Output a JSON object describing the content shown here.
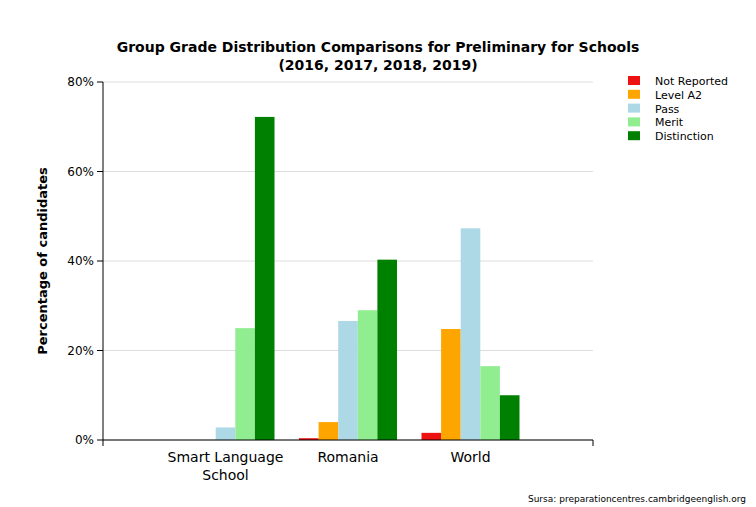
{
  "chart_data": {
    "type": "bar",
    "title": "Group Grade Distribution Comparisons for Preliminary for Schools",
    "subtitle": "(2016, 2017, 2018, 2019)",
    "y_label": "Percentage of candidates",
    "source": "Sursa: preparationcentres.cambridgeenglish.org",
    "categories": [
      "Smart Language School",
      "Romania",
      "World"
    ],
    "series": [
      {
        "name": "Not Reported",
        "color": "#ee1111",
        "values": [
          0,
          0.4,
          1.6
        ]
      },
      {
        "name": "Level A2",
        "color": "#ffa500",
        "values": [
          0,
          4,
          24.8
        ]
      },
      {
        "name": "Pass",
        "color": "#add8e6",
        "values": [
          2.8,
          26.6,
          47.3
        ]
      },
      {
        "name": "Merit",
        "color": "#90ee90",
        "values": [
          25,
          29,
          16.5
        ]
      },
      {
        "name": "Distinction",
        "color": "#008000",
        "values": [
          72.2,
          40.3,
          10
        ]
      }
    ],
    "ylim": [
      0,
      80
    ],
    "yticks": [
      {
        "value": 0,
        "label": "0%"
      },
      {
        "value": 20,
        "label": "20%"
      },
      {
        "value": 40,
        "label": "40%"
      },
      {
        "value": 60,
        "label": "60%"
      },
      {
        "value": 80,
        "label": "80%"
      }
    ],
    "grid": true,
    "legend": "top-right"
  }
}
